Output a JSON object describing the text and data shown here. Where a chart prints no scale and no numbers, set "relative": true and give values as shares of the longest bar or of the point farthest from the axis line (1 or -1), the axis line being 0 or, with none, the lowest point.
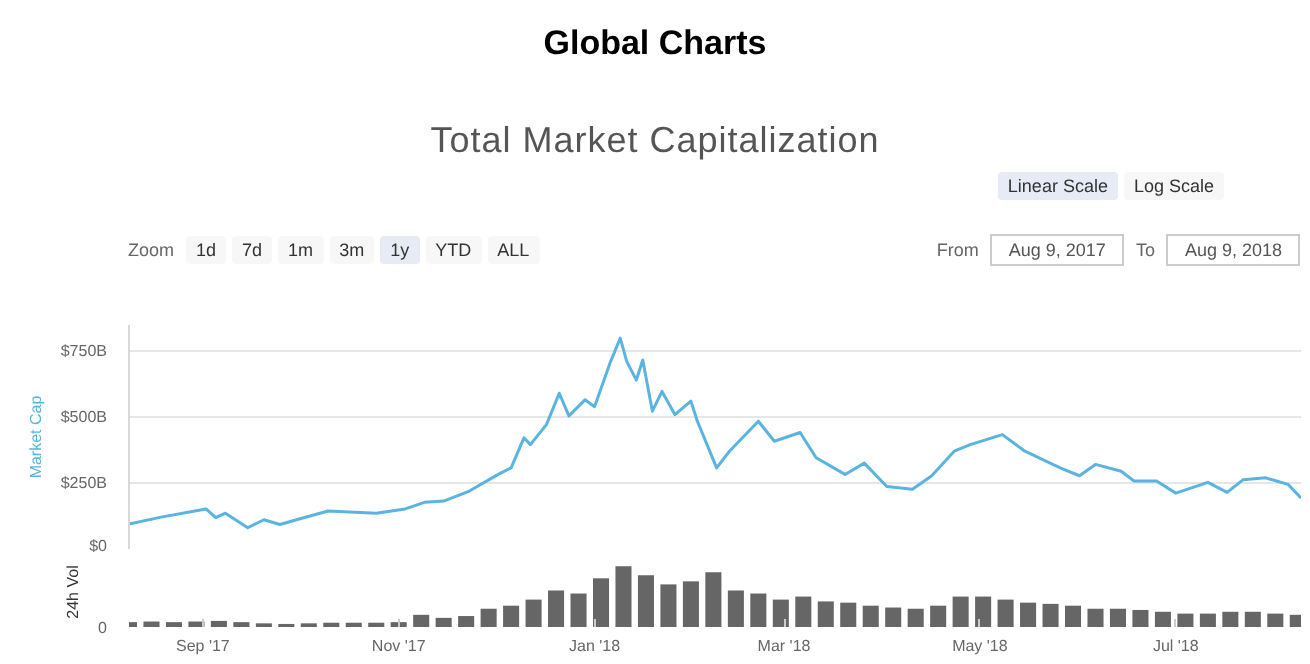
{
  "chart_data": [
    {
      "type": "line",
      "title": "Global Charts",
      "subtitle": "Total Market Capitalization",
      "ylabel": "Market Cap",
      "annotations": [
        "Linear Scale",
        "Log Scale",
        "Zoom",
        "1d",
        "7d",
        "1m",
        "3m",
        "1y",
        "YTD",
        "ALL",
        "From",
        "Aug 9, 2017",
        "To",
        "Aug 9, 2018"
      ],
      "series": [
        {
          "color": "#5ab4e0",
          "x": [
            "2017-08-09",
            "2017-08-19",
            "2017-09-02",
            "2017-09-05",
            "2017-09-08",
            "2017-09-15",
            "2017-09-20",
            "2017-09-25",
            "2017-10-01",
            "2017-10-10",
            "2017-10-15",
            "2017-10-25",
            "2017-11-03",
            "2017-11-09",
            "2017-11-15",
            "2017-11-23",
            "2017-12-02",
            "2017-12-06",
            "2017-12-10",
            "2017-12-12",
            "2017-12-17",
            "2017-12-21",
            "2017-12-24",
            "2017-12-29",
            "2018-01-01",
            "2018-01-06",
            "2018-01-09",
            "2018-01-11",
            "2018-01-14",
            "2018-01-16",
            "2018-01-19",
            "2018-01-22",
            "2018-01-26",
            "2018-01-31",
            "2018-02-02",
            "2018-02-08",
            "2018-02-12",
            "2018-02-21",
            "2018-02-26",
            "2018-03-06",
            "2018-03-11",
            "2018-03-20",
            "2018-03-26",
            "2018-04-02",
            "2018-04-10",
            "2018-04-16",
            "2018-04-23",
            "2018-04-28",
            "2018-05-08",
            "2018-05-15",
            "2018-05-26",
            "2018-06-01",
            "2018-06-06",
            "2018-06-14",
            "2018-06-18",
            "2018-06-25",
            "2018-07-01",
            "2018-07-11",
            "2018-07-17",
            "2018-07-22",
            "2018-07-29",
            "2018-08-05",
            "2018-08-09"
          ],
          "values": [
            95,
            121,
            152,
            119,
            136,
            81,
            111,
            93,
            114,
            144,
            141,
            136,
            152,
            177,
            182,
            220,
            283,
            308,
            422,
            396,
            472,
            591,
            505,
            566,
            540,
            712,
            800,
            712,
            641,
            717,
            523,
            598,
            510,
            561,
            485,
            308,
            371,
            485,
            409,
            442,
            346,
            283,
            326,
            237,
            227,
            278,
            371,
            396,
            434,
            371,
            308,
            278,
            321,
            295,
            258,
            258,
            212,
            253,
            215,
            263,
            270,
            245,
            194
          ]
        }
      ],
      "xlim": [
        "2017-08-09",
        "2018-08-09"
      ],
      "ylim": [
        0,
        850
      ],
      "yticks": [
        {
          "value": 0,
          "label": "$0"
        },
        {
          "value": 250,
          "label": "$250B"
        },
        {
          "value": 500,
          "label": "$500B"
        },
        {
          "value": 750,
          "label": "$750B"
        }
      ],
      "grid": "y",
      "tick_labels": "y"
    },
    {
      "type": "bar",
      "ylabel": "24h Vol",
      "relative": true,
      "annotations": [
        "0"
      ],
      "color": "#666666",
      "x": [
        "2017-08-09",
        "2017-08-16",
        "2017-08-23",
        "2017-08-30",
        "2017-09-06",
        "2017-09-13",
        "2017-09-20",
        "2017-09-27",
        "2017-10-04",
        "2017-10-11",
        "2017-10-18",
        "2017-10-25",
        "2017-11-01",
        "2017-11-08",
        "2017-11-15",
        "2017-11-22",
        "2017-11-29",
        "2017-12-06",
        "2017-12-13",
        "2017-12-20",
        "2017-12-27",
        "2018-01-03",
        "2018-01-10",
        "2018-01-17",
        "2018-01-24",
        "2018-01-31",
        "2018-02-07",
        "2018-02-14",
        "2018-02-21",
        "2018-02-28",
        "2018-03-07",
        "2018-03-14",
        "2018-03-21",
        "2018-03-28",
        "2018-04-04",
        "2018-04-11",
        "2018-04-18",
        "2018-04-25",
        "2018-05-02",
        "2018-05-09",
        "2018-05-16",
        "2018-05-23",
        "2018-05-30",
        "2018-06-06",
        "2018-06-13",
        "2018-06-20",
        "2018-06-27",
        "2018-07-04",
        "2018-07-11",
        "2018-07-18",
        "2018-07-25",
        "2018-08-01",
        "2018-08-08"
      ],
      "values": [
        0.08,
        0.09,
        0.08,
        0.09,
        0.1,
        0.08,
        0.06,
        0.05,
        0.06,
        0.07,
        0.07,
        0.07,
        0.08,
        0.2,
        0.15,
        0.18,
        0.3,
        0.35,
        0.45,
        0.6,
        0.55,
        0.8,
        1.0,
        0.85,
        0.7,
        0.75,
        0.9,
        0.6,
        0.55,
        0.45,
        0.5,
        0.42,
        0.4,
        0.35,
        0.32,
        0.3,
        0.35,
        0.5,
        0.5,
        0.45,
        0.4,
        0.38,
        0.35,
        0.3,
        0.3,
        0.28,
        0.25,
        0.22,
        0.22,
        0.25,
        0.25,
        0.22,
        0.2
      ],
      "xlim": [
        "2017-08-09",
        "2018-08-09"
      ],
      "xticks": [
        {
          "value": "2017-09-01",
          "label": "Sep '17"
        },
        {
          "value": "2017-11-01",
          "label": "Nov '17"
        },
        {
          "value": "2018-01-01",
          "label": "Jan '18"
        },
        {
          "value": "2018-03-01",
          "label": "Mar '18"
        },
        {
          "value": "2018-05-01",
          "label": "May '18"
        },
        {
          "value": "2018-07-01",
          "label": "Jul '18"
        }
      ],
      "tick_labels": "x"
    }
  ]
}
